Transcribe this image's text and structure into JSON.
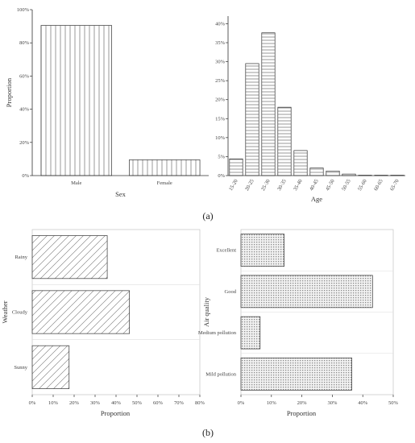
{
  "panels": {
    "a": "(a)",
    "b": "(b)"
  },
  "chart_data": [
    {
      "type": "bar",
      "xlabel": "Sex",
      "ylabel": "Proportion",
      "categories": [
        "Male",
        "Female"
      ],
      "values": [
        90.5,
        9.5
      ],
      "ylim": [
        0,
        100
      ],
      "yticks": [
        "0%",
        "20%",
        "40%",
        "60%",
        "80%",
        "100%"
      ],
      "pattern": "vertical-lines"
    },
    {
      "type": "bar",
      "xlabel": "Age",
      "ylabel": "",
      "categories": [
        "15-20",
        "20-25",
        "25-30",
        "30-35",
        "35-40",
        "40-45",
        "45-50",
        "50-55",
        "55-60",
        "60-65",
        "65-70"
      ],
      "values": [
        4.4,
        29.5,
        37.6,
        18.0,
        6.6,
        2.0,
        1.2,
        0.4,
        0.1,
        0.1,
        0.1
      ],
      "ylim": [
        0,
        42
      ],
      "yticks": [
        "0%",
        "5%",
        "10%",
        "15%",
        "20%",
        "25%",
        "30%",
        "35%",
        "40%"
      ],
      "pattern": "horizontal-lines"
    },
    {
      "type": "bar",
      "orientation": "horizontal",
      "xlabel": "Proportion",
      "ylabel": "Weather",
      "categories": [
        "Rainy",
        "Cloudy",
        "Sunny"
      ],
      "values": [
        35.8,
        46.4,
        17.6
      ],
      "xlim": [
        0,
        80
      ],
      "xticks": [
        "0%",
        "10%",
        "20%",
        "30%",
        "40%",
        "50%",
        "60%",
        "70%",
        "80%"
      ],
      "pattern": "diagonal-lines"
    },
    {
      "type": "bar",
      "orientation": "horizontal",
      "xlabel": "Proportion",
      "ylabel": "Air quality",
      "categories": [
        "Excellent",
        "Good",
        "Medium pollution",
        "Mild pollution"
      ],
      "values": [
        14.2,
        43.2,
        6.3,
        36.4
      ],
      "xlim": [
        0,
        50
      ],
      "xticks": [
        "0%",
        "10%",
        "20%",
        "30%",
        "40%",
        "50%"
      ],
      "pattern": "dotted-grid"
    }
  ]
}
